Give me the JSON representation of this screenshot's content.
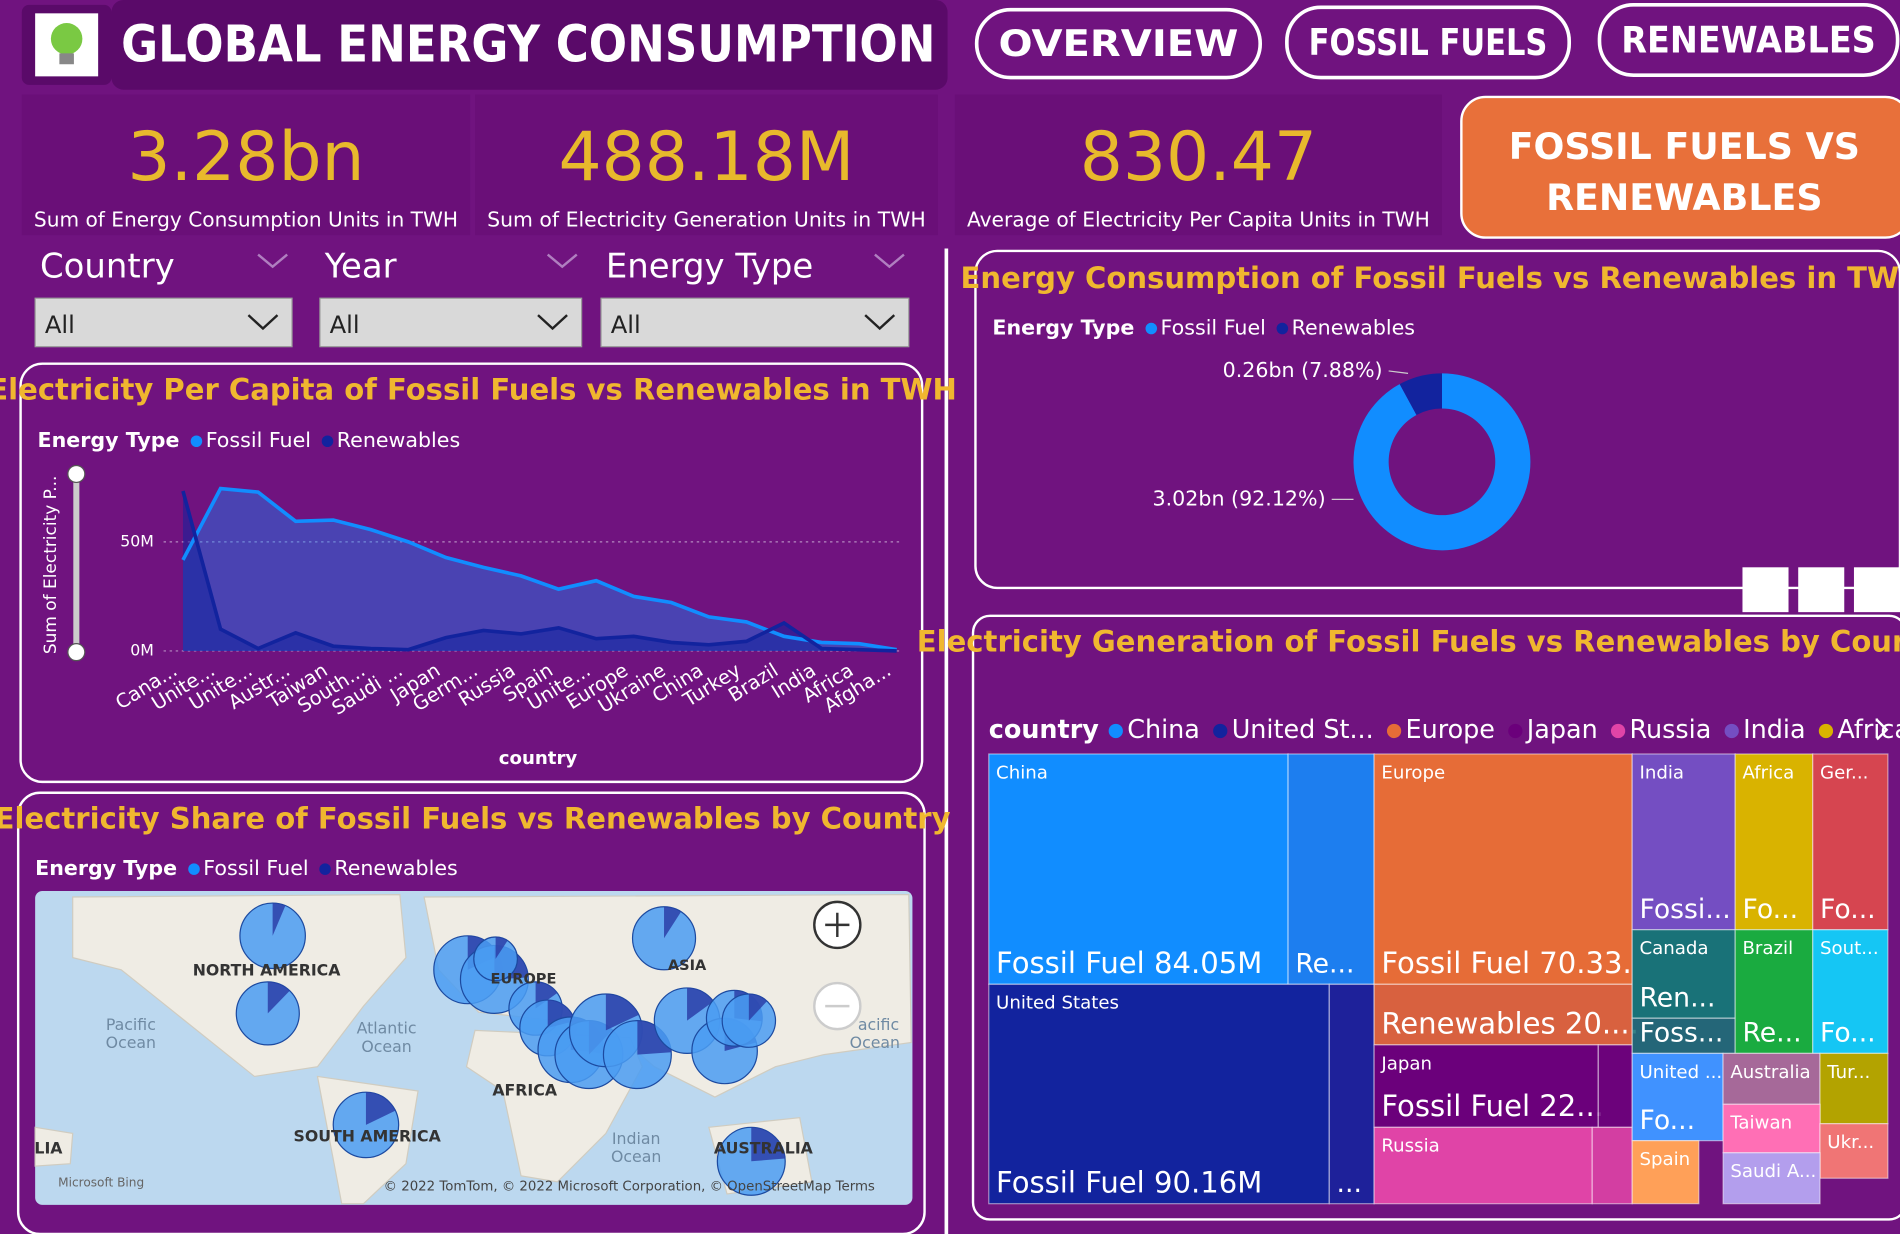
{
  "header": {
    "title": "GLOBAL ENERGY CONSUMPTION"
  },
  "nav": [
    "OVERVIEW",
    "FOSSIL FUELS",
    "RENEWABLES"
  ],
  "active_tab": [
    "FOSSIL FUELS VS",
    "RENEWABLES"
  ],
  "kpis": [
    {
      "value": "3.28bn",
      "label": "Sum of Energy Consumption Units in TWH"
    },
    {
      "value": "488.18M",
      "label": "Sum of Electricity Generation Units in TWH"
    },
    {
      "value": "830.47",
      "label": "Average of Electricity Per Capita Units in TWH"
    }
  ],
  "filters": [
    {
      "label": "Country",
      "selected": "All"
    },
    {
      "label": "Year",
      "selected": "All"
    },
    {
      "label": "Energy Type",
      "selected": "All"
    }
  ],
  "chart_data": [
    {
      "type": "area",
      "title": "Electricity Per Capita of Fossil Fuels vs Renewables in TWH",
      "legend_title": "Energy Type",
      "x_label": "country",
      "y_label": "Sum of Electricity P...",
      "categories": [
        "Cana...",
        "Unite...",
        "Unite...",
        "Austr...",
        "Taiwan",
        "South...",
        "Saudi ...",
        "Japan",
        "Germ...",
        "Russia",
        "Spain",
        "Unite...",
        "Europe",
        "Ukraine",
        "China",
        "Turkey",
        "Brazil",
        "India",
        "Africa",
        "Afgha..."
      ],
      "series": [
        {
          "name": "Fossil Fuel",
          "color": "#118dff",
          "values": [
            41.7,
            74.4,
            72.8,
            59.4,
            60,
            55.6,
            50,
            42.8,
            38.3,
            34.4,
            28.3,
            32.2,
            25,
            22.2,
            15.6,
            13.3,
            6.7,
            3.9,
            3.3,
            0.6
          ]
        },
        {
          "name": "Renewables",
          "color": "#12239e",
          "values": [
            73.3,
            10,
            1.1,
            8.3,
            2.2,
            1.1,
            0.6,
            6.1,
            9.4,
            7.8,
            10.6,
            5.6,
            6.7,
            3.9,
            2.8,
            4.4,
            12.8,
            1.1,
            0.6,
            0
          ]
        }
      ],
      "ylim": [
        0,
        82
      ],
      "yticks": [
        {
          "value": 0,
          "label": "0M"
        },
        {
          "value": 50,
          "label": "50M"
        }
      ],
      "grid": true
    },
    {
      "type": "donut",
      "title": "Energy Consumption of Fossil Fuels vs Renewables in TWH",
      "legend_title": "Energy Type",
      "categories": [
        "Fossil Fuel",
        "Renewables"
      ],
      "colors": [
        "#118dff",
        "#12239e"
      ],
      "values": [
        3.02,
        0.26
      ],
      "value_labels": [
        "3.02bn (92.12%)",
        "0.26bn (7.88%)"
      ]
    },
    {
      "type": "map",
      "title": "Electricity Share of Fossil Fuels vs Renewables by Country",
      "legend_title": "Energy Type",
      "series": [
        {
          "name": "Fossil Fuel",
          "color": "#118dff"
        },
        {
          "name": "Renewables",
          "color": "#12239e"
        }
      ],
      "labels": [
        "NORTH AMERICA",
        "EUROPE",
        "ASIA",
        "AFRICA",
        "SOUTH AMERICA",
        "AUSTRALIA",
        "LIA",
        "Pacific",
        "Ocean",
        "Atlantic",
        "Ocean",
        "Indian",
        "Ocean",
        "acific",
        "Ocean"
      ],
      "attribution": "© 2022 TomTom, © 2022 Microsoft Corporation, © OpenStreetMap  Terms",
      "provider": "Microsoft Bing"
    },
    {
      "type": "treemap",
      "title": "Electricity Generation of Fossil Fuels vs Renewables by Country",
      "legend_title": "country",
      "legend": [
        {
          "name": "China",
          "color": "#118dff"
        },
        {
          "name": "United St...",
          "color": "#12239e"
        },
        {
          "name": "Europe",
          "color": "#e66c37"
        },
        {
          "name": "Japan",
          "color": "#6b007b"
        },
        {
          "name": "Russia",
          "color": "#e044a7"
        },
        {
          "name": "India",
          "color": "#744ec2"
        },
        {
          "name": "Africa",
          "color": "#d9b300"
        }
      ],
      "groups": [
        {
          "name": "China",
          "color": "#118dff",
          "tiles": [
            {
              "label": "Fossil Fuel 84.05M",
              "value": 84.05
            },
            {
              "label": "Re...",
              "value": 24.2
            }
          ]
        },
        {
          "name": "United States",
          "color": "#12239e",
          "tiles": [
            {
              "label": "Fossil Fuel 90.16M",
              "value": 90.16
            },
            {
              "label": "...",
              "value": 11.9
            }
          ]
        },
        {
          "name": "Europe",
          "color": "#e66c37",
          "tiles": [
            {
              "label": "Fossil Fuel 70.33...",
              "value": 70.33
            },
            {
              "label": "Renewables 20....",
              "value": 20.4
            }
          ]
        },
        {
          "name": "Japan",
          "color": "#6b007b",
          "tiles": [
            {
              "label": "Fossil Fuel 22...",
              "value": 22.5
            },
            {
              "label": null,
              "value": 3.4
            }
          ]
        },
        {
          "name": "Russia",
          "color": "#e044a7",
          "tiles": [
            {
              "label": null,
              "value": 20.3
            },
            {
              "label": null,
              "value": 3.7
            }
          ]
        },
        {
          "name": "India",
          "color": "#744ec2",
          "tiles": [
            {
              "label": "Fossi...",
              "value": 22.1
            }
          ]
        },
        {
          "name": "Africa",
          "color": "#d9b300",
          "tiles": [
            {
              "label": "Fo...",
              "value": 16.6
            }
          ]
        },
        {
          "name": "Ger...",
          "color": "#d64550",
          "tiles": [
            {
              "label": "Fo...",
              "value": 16.1
            }
          ]
        },
        {
          "name": "Canada",
          "color": "#197278",
          "tiles": [
            {
              "label": "Ren...",
              "value": 10.4
            },
            {
              "label": "Foss...",
              "value": 4.4
            }
          ]
        },
        {
          "name": "Brazil",
          "color": "#1aab40",
          "tiles": [
            {
              "label": "Re...",
              "value": 11.7
            }
          ]
        },
        {
          "name": "Sout...",
          "color": "#15c6f4",
          "tiles": [
            {
              "label": "Fo...",
              "value": 11.3
            }
          ]
        },
        {
          "name": "United ...",
          "color": "#4092ff",
          "tiles": [
            {
              "label": "Fo...",
              "value": 9.7
            }
          ]
        },
        {
          "name": "Australia",
          "color": "#a66999",
          "tiles": [
            {
              "label": null,
              "value": 6.0
            }
          ]
        },
        {
          "name": "Tur...",
          "color": "#b3a300",
          "tiles": [
            {
              "label": null,
              "value": 5.8
            }
          ]
        },
        {
          "name": "Taiwan",
          "color": "#ff6fb5",
          "tiles": [
            {
              "label": null,
              "value": 5.7
            }
          ]
        },
        {
          "name": "Ukr...",
          "color": "#f07575",
          "tiles": [
            {
              "label": null,
              "value": 4.5
            }
          ]
        },
        {
          "name": "Spain",
          "color": "#ffa058",
          "tiles": [
            {
              "label": null,
              "value": 5.1
            }
          ]
        },
        {
          "name": "Saudi A...",
          "color": "#b39eed",
          "tiles": [
            {
              "label": null,
              "value": 6.0
            }
          ]
        }
      ]
    }
  ]
}
